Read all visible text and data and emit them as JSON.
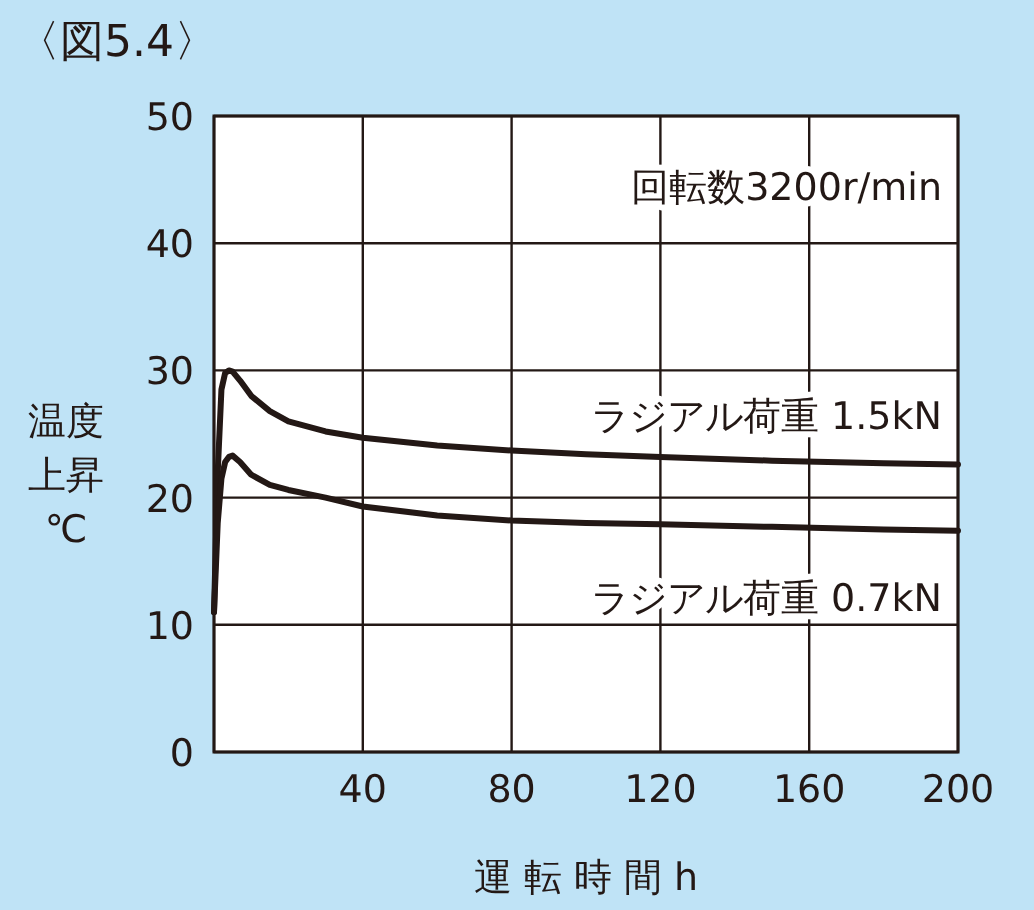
{
  "chart_data": {
    "type": "line",
    "title": "〈図5.4〉",
    "xlabel": "運 転 時 間 h",
    "ylabel": "温度上昇℃",
    "annotations": [
      "回転数3200r/min"
    ],
    "xlim": [
      0,
      200
    ],
    "ylim": [
      0,
      50
    ],
    "xticks": [
      {
        "value": 0,
        "label": null
      },
      40,
      80,
      120,
      160,
      200
    ],
    "yticks": [
      0,
      10,
      20,
      30,
      40,
      50
    ],
    "grid": true,
    "series": [
      {
        "name": "ラジアル荷重 1.5kN",
        "color": "#231815",
        "x": [
          0,
          1,
          2,
          3,
          4,
          5,
          7,
          10,
          15,
          20,
          30,
          40,
          60,
          80,
          100,
          120,
          150,
          180,
          200
        ],
        "values": [
          11,
          22,
          28.5,
          29.8,
          30,
          29.9,
          29.2,
          28,
          26.8,
          26,
          25.2,
          24.7,
          24.1,
          23.7,
          23.4,
          23.2,
          22.9,
          22.7,
          22.6
        ]
      },
      {
        "name": "ラジアル荷重 0.7kN",
        "color": "#231815",
        "x": [
          0,
          1,
          2,
          3,
          4,
          5,
          7,
          10,
          15,
          20,
          30,
          40,
          60,
          80,
          100,
          120,
          150,
          180,
          200
        ],
        "values": [
          11,
          18,
          21.5,
          22.8,
          23.2,
          23.3,
          22.8,
          21.8,
          21,
          20.6,
          20,
          19.3,
          18.6,
          18.2,
          18,
          17.9,
          17.7,
          17.5,
          17.4
        ]
      }
    ]
  }
}
